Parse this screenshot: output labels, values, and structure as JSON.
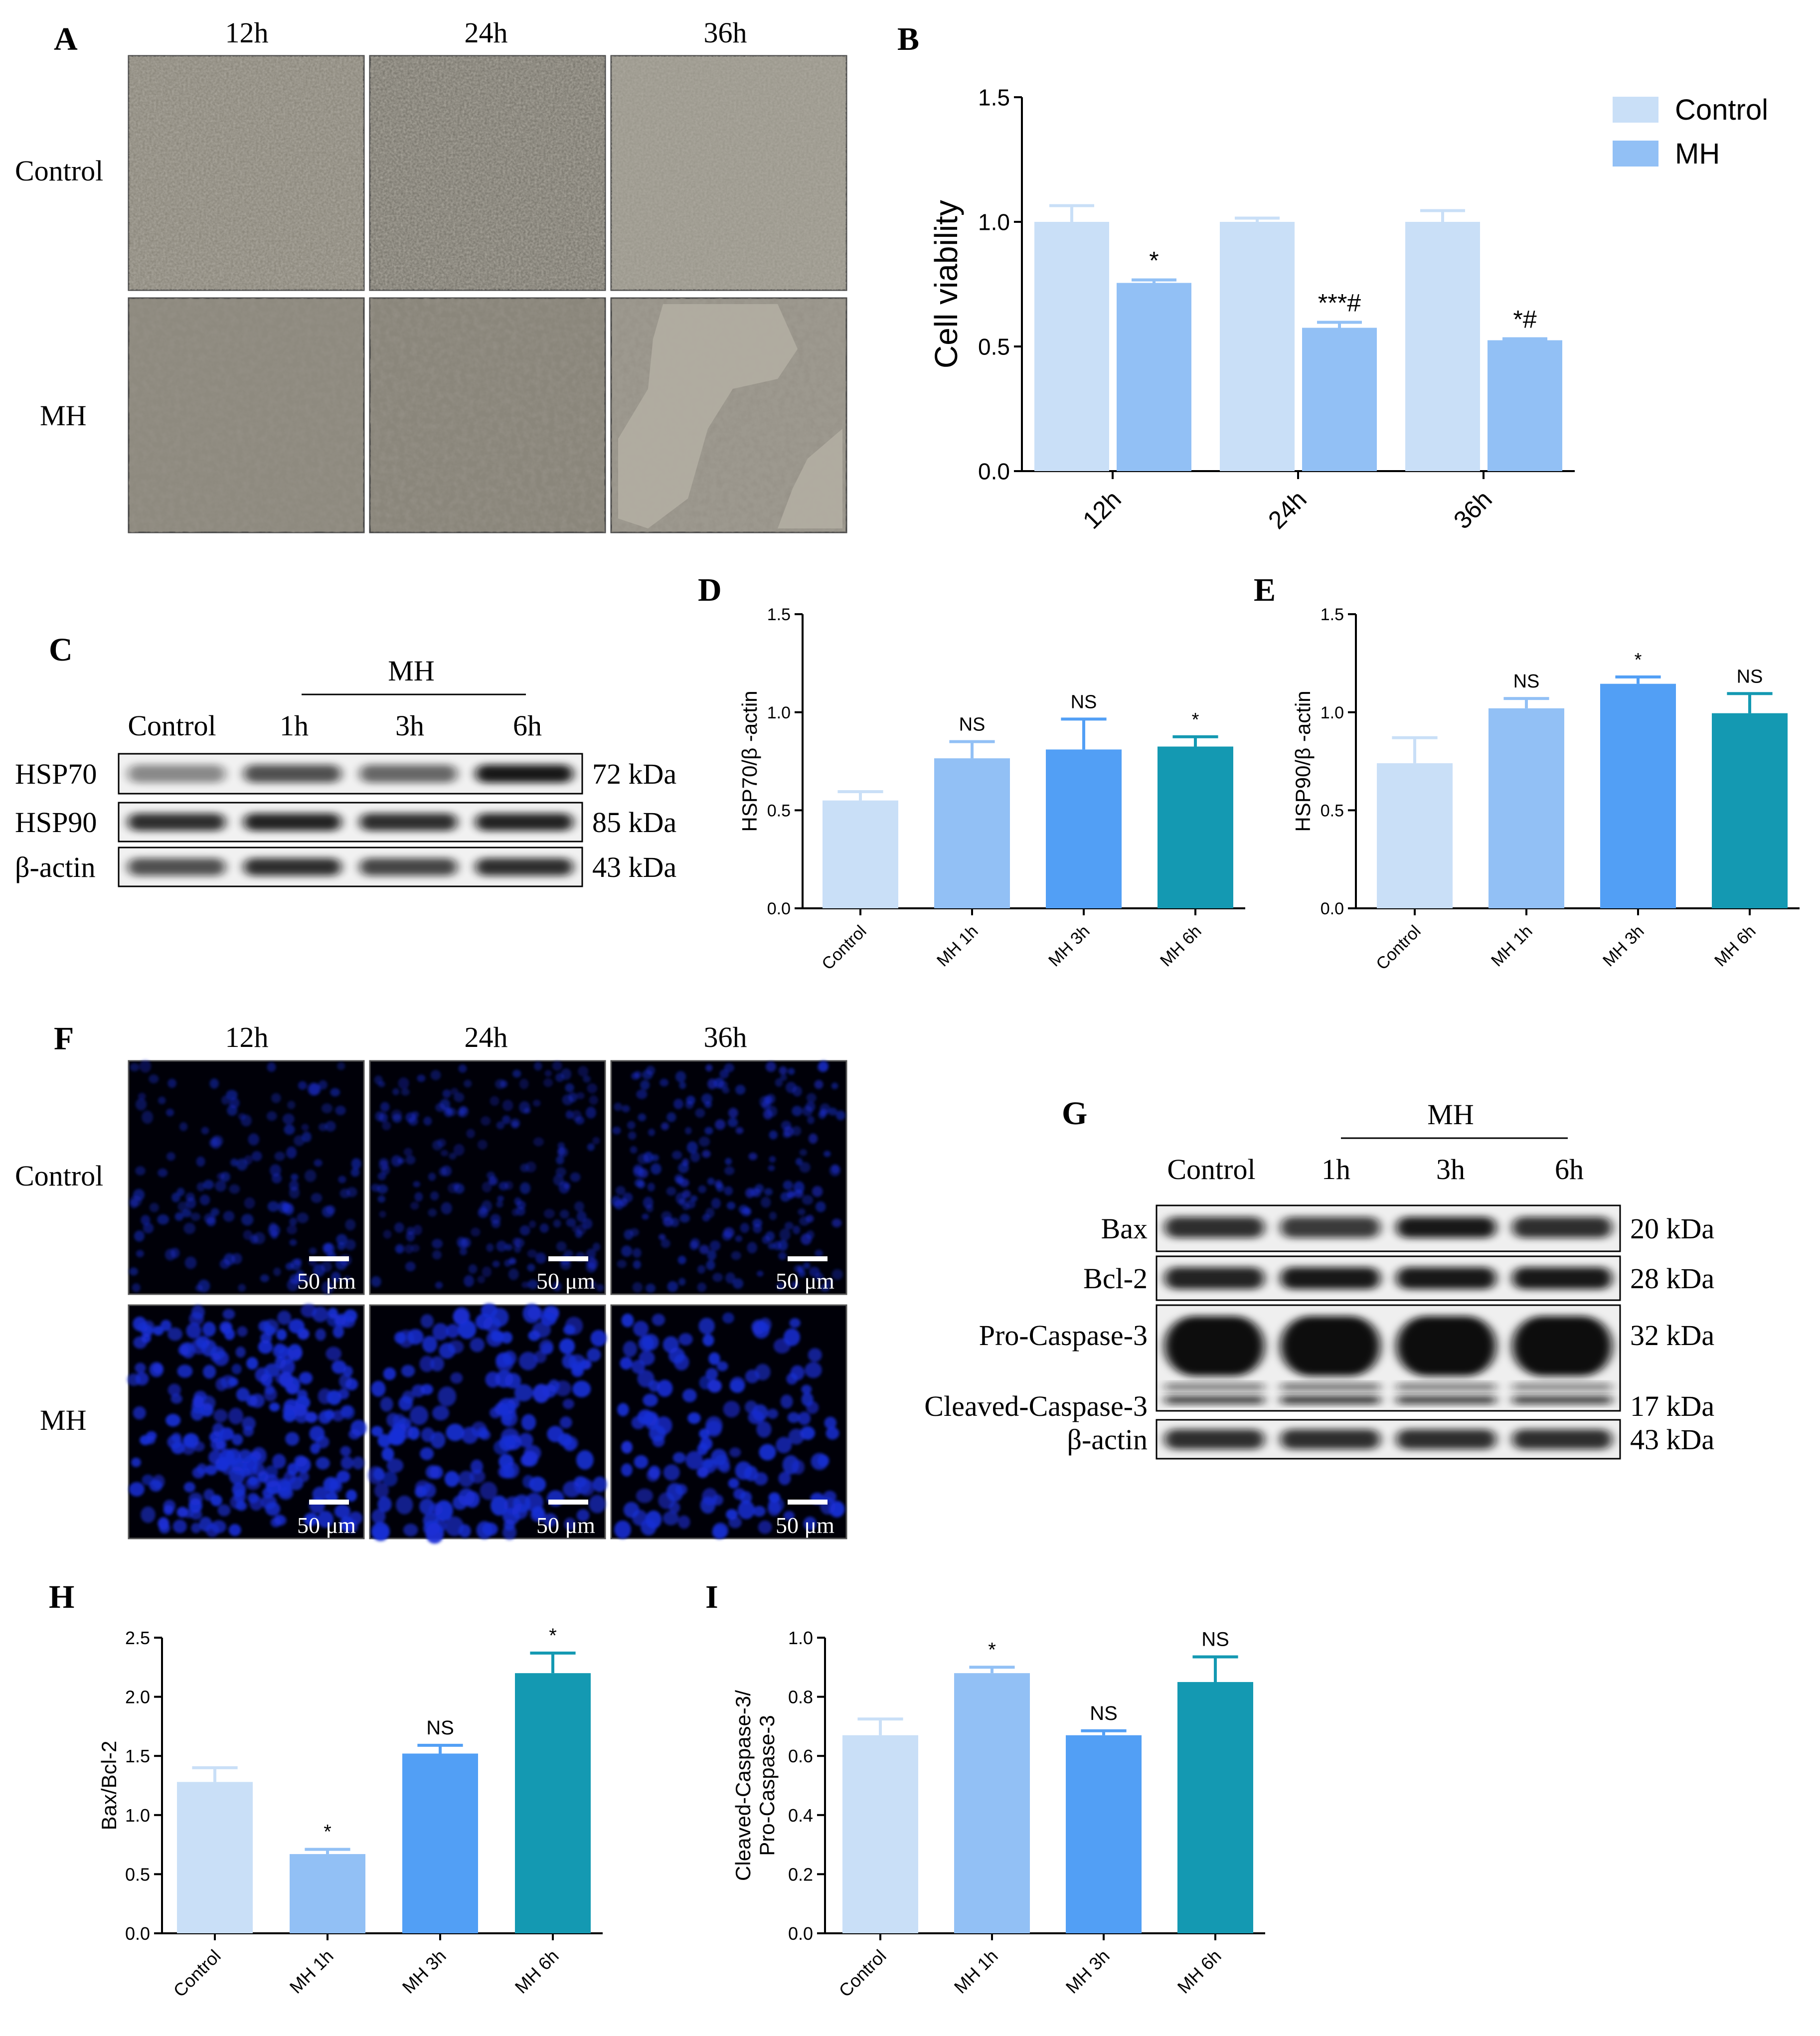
{
  "panels": {
    "A": "A",
    "B": "B",
    "C": "C",
    "D": "D",
    "E": "E",
    "F": "F",
    "G": "G",
    "H": "H",
    "I": "I"
  },
  "panel_a": {
    "col_labels": [
      "12h",
      "24h",
      "36h"
    ],
    "row_labels": [
      "Control",
      "MH"
    ]
  },
  "panel_f": {
    "col_labels": [
      "12h",
      "24h",
      "36h"
    ],
    "row_labels": [
      "Control",
      "MH"
    ],
    "scale_bar": "50 μm"
  },
  "blot_c": {
    "group_label": "MH",
    "lanes": [
      "Control",
      "1h",
      "3h",
      "6h"
    ],
    "rows": [
      {
        "protein": "HSP70",
        "kda": "72 kDa",
        "intensity": [
          0.45,
          0.7,
          0.6,
          0.95
        ]
      },
      {
        "protein": "HSP90",
        "kda": "85 kDa",
        "intensity": [
          0.85,
          0.9,
          0.85,
          0.9
        ]
      },
      {
        "protein": "β-actin",
        "kda": "43 kDa",
        "intensity": [
          0.7,
          0.85,
          0.75,
          0.85
        ]
      }
    ]
  },
  "blot_g": {
    "group_label": "MH",
    "lanes": [
      "Control",
      "1h",
      "3h",
      "6h"
    ],
    "rows": [
      {
        "protein": "Bax",
        "kda": "20 kDa"
      },
      {
        "protein": "Bcl-2",
        "kda": "28 kDa"
      },
      {
        "protein": "Pro-Caspase-3",
        "kda": "32 kDa"
      },
      {
        "protein": "Cleaved-Caspase-3",
        "kda": "17 kDa"
      },
      {
        "protein": "β-actin",
        "kda": "43 kDa"
      }
    ]
  },
  "colors": {
    "control": "#c9dff7",
    "mh": "#92c0f5",
    "mh1": "#92c0f5",
    "mh3": "#529ff5",
    "mh6": "#1499b2",
    "axis": "#000000",
    "fluor": "#1a2fd6"
  },
  "chart_data": [
    {
      "id": "B",
      "type": "bar",
      "categories": [
        "12h",
        "24h",
        "36h"
      ],
      "series": [
        {
          "name": "Control",
          "values": [
            1.0,
            1.0,
            1.0
          ],
          "errors": [
            0.065,
            0.015,
            0.045
          ]
        },
        {
          "name": "MH",
          "values": [
            0.755,
            0.575,
            0.525
          ],
          "errors": [
            0.012,
            0.022,
            0.006
          ]
        }
      ],
      "annotations": [
        "*",
        "***#",
        "*#"
      ],
      "ylabel": "Cell viability",
      "ylim": [
        0,
        1.5
      ],
      "yticks": [
        "0.0",
        "0.5",
        "1.0",
        "1.5"
      ],
      "legend": "top-right"
    },
    {
      "id": "D",
      "type": "bar",
      "categories": [
        "Control",
        "MH 1h",
        "MH 3h",
        "MH 6h"
      ],
      "values": [
        0.55,
        0.765,
        0.81,
        0.825
      ],
      "errors": [
        0.045,
        0.085,
        0.155,
        0.05
      ],
      "annotations": [
        "",
        "NS",
        "NS",
        "*"
      ],
      "ylabel": "HSP70/β -actin",
      "ylim": [
        0,
        1.5
      ],
      "yticks": [
        "0.0",
        "0.5",
        "1.0",
        "1.5"
      ]
    },
    {
      "id": "E",
      "type": "bar",
      "categories": [
        "Control",
        "MH 1h",
        "MH 3h",
        "MH 6h"
      ],
      "values": [
        0.74,
        1.02,
        1.145,
        0.995
      ],
      "errors": [
        0.13,
        0.05,
        0.035,
        0.1
      ],
      "annotations": [
        "",
        "NS",
        "*",
        "NS"
      ],
      "ylabel": "HSP90/β -actin",
      "ylim": [
        0,
        1.5
      ],
      "yticks": [
        "0.0",
        "0.5",
        "1.0",
        "1.5"
      ]
    },
    {
      "id": "H",
      "type": "bar",
      "categories": [
        "Control",
        "MH 1h",
        "MH 3h",
        "MH 6h"
      ],
      "values": [
        1.28,
        0.67,
        1.52,
        2.2
      ],
      "errors": [
        0.12,
        0.04,
        0.07,
        0.17
      ],
      "annotations": [
        "",
        "*",
        "NS",
        "*"
      ],
      "ylabel": "Bax/Bcl-2",
      "ylim": [
        0,
        2.5
      ],
      "yticks": [
        "0.0",
        "0.5",
        "1.0",
        "1.5",
        "2.0",
        "2.5"
      ]
    },
    {
      "id": "I",
      "type": "bar",
      "categories": [
        "Control",
        "MH 1h",
        "MH 3h",
        "MH 6h"
      ],
      "values": [
        0.67,
        0.88,
        0.67,
        0.85
      ],
      "errors": [
        0.055,
        0.02,
        0.015,
        0.085
      ],
      "annotations": [
        "",
        "*",
        "NS",
        "NS"
      ],
      "ylabel_lines": [
        "Cleaved-Caspase-3/",
        "Pro-Caspase-3"
      ],
      "ylim": [
        0,
        1.0
      ],
      "yticks": [
        "0.0",
        "0.2",
        "0.4",
        "0.6",
        "0.8",
        "1.0"
      ]
    }
  ]
}
